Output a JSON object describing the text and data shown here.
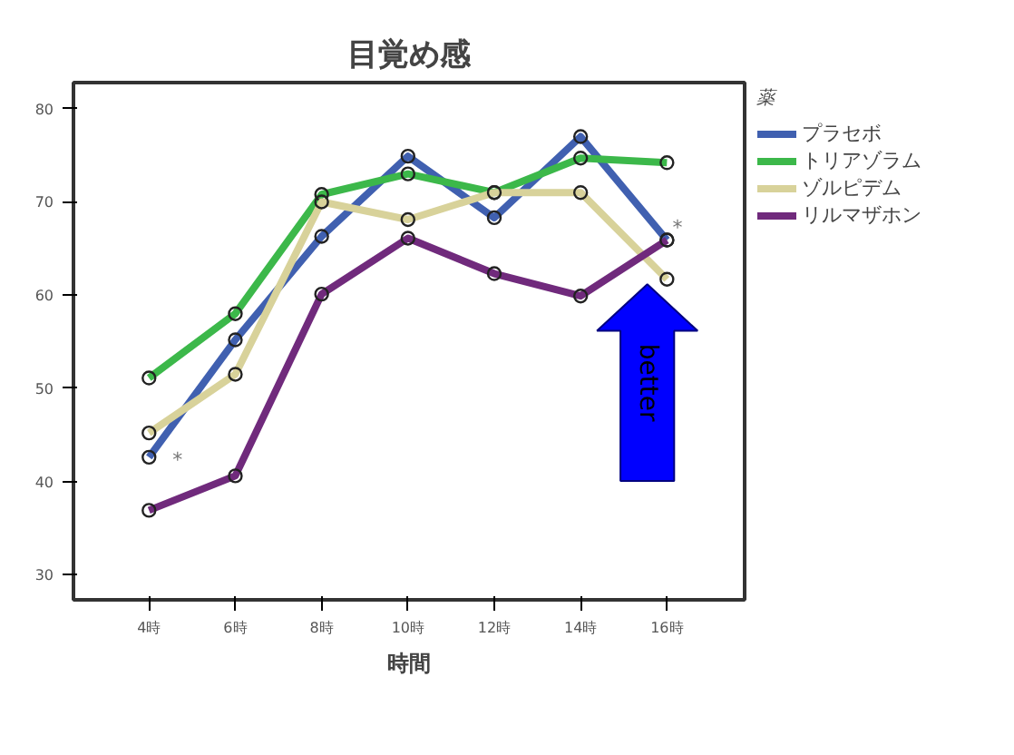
{
  "chart_data": {
    "type": "line",
    "title": "目覚め感",
    "xlabel": "時間",
    "legend_title": "薬",
    "categories": [
      "4時",
      "6時",
      "8時",
      "10時",
      "12時",
      "14時",
      "16時"
    ],
    "series": [
      {
        "name": "プラセボ",
        "color": "#4060b0",
        "values": [
          42.6,
          55.2,
          66.3,
          74.9,
          68.3,
          77.0,
          65.9
        ]
      },
      {
        "name": "トリアゾラム",
        "color": "#3cb84a",
        "values": [
          51.1,
          58.0,
          70.8,
          73.0,
          71.0,
          74.7,
          74.2
        ]
      },
      {
        "name": "ゾルピデム",
        "color": "#d8d29a",
        "values": [
          45.2,
          51.5,
          70.0,
          68.1,
          71.0,
          71.0,
          61.7
        ]
      },
      {
        "name": "リルマザホン",
        "color": "#702a7c",
        "values": [
          36.9,
          40.6,
          60.1,
          66.1,
          62.3,
          59.9,
          65.9
        ]
      }
    ],
    "ylim": [
      27.3,
      82.8
    ],
    "yticks": [
      30,
      40,
      50,
      60,
      70,
      80
    ],
    "annotations": [
      "*",
      "*",
      "better"
    ],
    "grid": false,
    "legend": "right",
    "marker": "circle",
    "line_style": "solid"
  }
}
